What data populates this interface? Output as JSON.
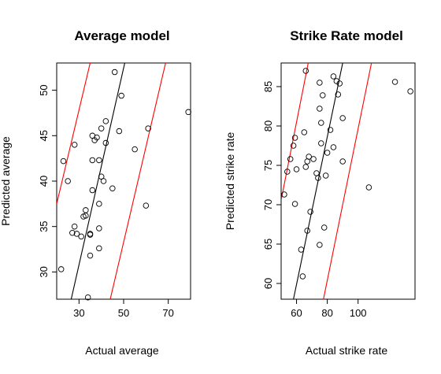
{
  "chart_data": [
    {
      "type": "scatter",
      "title": "Average model",
      "xlabel": "Actual average",
      "ylabel": "Predicted average",
      "xlim": [
        20,
        80
      ],
      "ylim": [
        27,
        53
      ],
      "xticks": [
        30,
        50,
        70
      ],
      "yticks": [
        30,
        35,
        40,
        45,
        50
      ],
      "x_tick_labels": [
        "30",
        "50",
        "70"
      ],
      "y_tick_labels": [
        "30",
        "35",
        "40",
        "45",
        "50"
      ],
      "points": [
        {
          "x": 22,
          "y": 30.3
        },
        {
          "x": 23,
          "y": 42.2
        },
        {
          "x": 25,
          "y": 40.0
        },
        {
          "x": 27,
          "y": 34.3
        },
        {
          "x": 28,
          "y": 35.0
        },
        {
          "x": 28,
          "y": 44.0
        },
        {
          "x": 29,
          "y": 34.2
        },
        {
          "x": 31,
          "y": 33.9
        },
        {
          "x": 32,
          "y": 36.1
        },
        {
          "x": 33,
          "y": 36.2
        },
        {
          "x": 33,
          "y": 36.8
        },
        {
          "x": 34,
          "y": 27.2
        },
        {
          "x": 35,
          "y": 34.2
        },
        {
          "x": 35,
          "y": 34.1
        },
        {
          "x": 35,
          "y": 31.8
        },
        {
          "x": 36,
          "y": 39.0
        },
        {
          "x": 36,
          "y": 42.3
        },
        {
          "x": 36,
          "y": 45.0
        },
        {
          "x": 37,
          "y": 44.5
        },
        {
          "x": 38,
          "y": 44.8
        },
        {
          "x": 39,
          "y": 37.5
        },
        {
          "x": 39,
          "y": 34.8
        },
        {
          "x": 39,
          "y": 32.6
        },
        {
          "x": 39,
          "y": 42.3
        },
        {
          "x": 40,
          "y": 40.5
        },
        {
          "x": 40,
          "y": 45.8
        },
        {
          "x": 41,
          "y": 40.0
        },
        {
          "x": 42,
          "y": 46.6
        },
        {
          "x": 42,
          "y": 44.2
        },
        {
          "x": 45,
          "y": 39.2
        },
        {
          "x": 46,
          "y": 52.0
        },
        {
          "x": 48,
          "y": 45.5
        },
        {
          "x": 49,
          "y": 49.4
        },
        {
          "x": 55,
          "y": 43.5
        },
        {
          "x": 60,
          "y": 37.3
        },
        {
          "x": 61,
          "y": 45.8
        },
        {
          "x": 79,
          "y": 47.6
        }
      ],
      "lines": [
        {
          "color": "#000000",
          "x": [
            26.5,
            50.5
          ],
          "y": [
            27,
            53
          ]
        },
        {
          "color": "#ff0000",
          "x": [
            20,
            35
          ],
          "y": [
            37.5,
            53
          ]
        },
        {
          "color": "#ff0000",
          "x": [
            44,
            68.8
          ],
          "y": [
            27,
            53
          ]
        }
      ],
      "grid": false,
      "legend": "none"
    },
    {
      "type": "scatter",
      "title": "Strike Rate model",
      "xlabel": "Actual strike rate",
      "ylabel": "Predicted strike rate",
      "xlim": [
        50,
        137
      ],
      "ylim": [
        58,
        88
      ],
      "xticks": [
        60,
        80,
        100
      ],
      "yticks": [
        60,
        65,
        70,
        75,
        80,
        85
      ],
      "x_tick_labels": [
        "60",
        "80",
        "100"
      ],
      "y_tick_labels": [
        "60",
        "65",
        "70",
        "75",
        "80",
        "85"
      ],
      "points": [
        {
          "x": 52,
          "y": 71.3
        },
        {
          "x": 54,
          "y": 74.2
        },
        {
          "x": 56,
          "y": 75.8
        },
        {
          "x": 58,
          "y": 77.5
        },
        {
          "x": 59,
          "y": 78.5
        },
        {
          "x": 59,
          "y": 70.1
        },
        {
          "x": 60,
          "y": 74.5
        },
        {
          "x": 63,
          "y": 64.3
        },
        {
          "x": 64,
          "y": 60.9
        },
        {
          "x": 65,
          "y": 79.2
        },
        {
          "x": 66,
          "y": 74.8
        },
        {
          "x": 66,
          "y": 87.0
        },
        {
          "x": 67,
          "y": 66.7
        },
        {
          "x": 67,
          "y": 75.5
        },
        {
          "x": 68,
          "y": 76.1
        },
        {
          "x": 69,
          "y": 69.1
        },
        {
          "x": 71,
          "y": 75.8
        },
        {
          "x": 73,
          "y": 74.0
        },
        {
          "x": 74,
          "y": 73.4
        },
        {
          "x": 75,
          "y": 64.9
        },
        {
          "x": 75,
          "y": 82.2
        },
        {
          "x": 75,
          "y": 85.5
        },
        {
          "x": 76,
          "y": 77.8
        },
        {
          "x": 76,
          "y": 80.4
        },
        {
          "x": 77,
          "y": 83.9
        },
        {
          "x": 78,
          "y": 67.1
        },
        {
          "x": 79,
          "y": 73.7
        },
        {
          "x": 80,
          "y": 76.6
        },
        {
          "x": 82,
          "y": 79.5
        },
        {
          "x": 84,
          "y": 77.3
        },
        {
          "x": 84,
          "y": 86.3
        },
        {
          "x": 86,
          "y": 85.7
        },
        {
          "x": 87,
          "y": 84.0
        },
        {
          "x": 88,
          "y": 85.4
        },
        {
          "x": 90,
          "y": 75.5
        },
        {
          "x": 90,
          "y": 81.0
        },
        {
          "x": 107,
          "y": 72.2
        },
        {
          "x": 124,
          "y": 85.6
        },
        {
          "x": 134,
          "y": 84.4
        }
      ],
      "lines": [
        {
          "color": "#000000",
          "x": [
            58,
            90
          ],
          "y": [
            58,
            88
          ]
        },
        {
          "color": "#ff0000",
          "x": [
            50,
            67.6
          ],
          "y": [
            70.6,
            88
          ]
        },
        {
          "color": "#ff0000",
          "x": [
            77.5,
            108.7
          ],
          "y": [
            58,
            88
          ]
        }
      ],
      "grid": false,
      "legend": "none"
    }
  ]
}
